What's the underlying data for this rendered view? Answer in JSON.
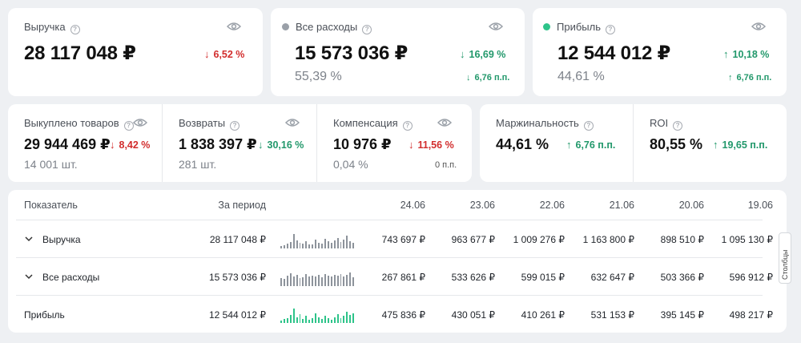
{
  "cards_top": [
    {
      "label": "Выручка",
      "value": "28 117 048 ₽",
      "change": "6,52 %",
      "change_dir": "down",
      "change_color": "red"
    },
    {
      "label": "Все расходы",
      "dot_color": "#9aa0a8",
      "value": "15 573 036 ₽",
      "change": "16,69 %",
      "change_dir": "down",
      "sub": "55,39 %",
      "sub_change": "6,76 п.п.",
      "sub_change_dir": "down"
    },
    {
      "label": "Прибыль",
      "dot_color": "#2ec48a",
      "value": "12 544 012 ₽",
      "change": "10,18 %",
      "change_dir": "up",
      "sub": "44,61 %",
      "sub_change": "6,76 п.п.",
      "sub_change_dir": "up"
    }
  ],
  "cards_mid": [
    {
      "label": "Выкуплено товаров",
      "value": "29 944 469 ₽",
      "change": "8,42 %",
      "change_dir": "down",
      "sub": "14 001 шт."
    },
    {
      "label": "Возвраты",
      "value": "1 838 397 ₽",
      "change": "30,16 %",
      "change_dir": "down",
      "sub": "281 шт."
    },
    {
      "label": "Компенсация",
      "value": "10 976 ₽",
      "change": "11,56 %",
      "change_dir": "down",
      "sub": "0,04 %",
      "sub_change": "0 п.п."
    },
    {
      "label": "Маржинальность",
      "value": "44,61 %",
      "change": "6,76 п.п.",
      "change_dir": "up"
    },
    {
      "label": "ROI",
      "value": "80,55 %",
      "change": "19,65 п.п.",
      "change_dir": "up"
    }
  ],
  "table": {
    "headers": [
      "Показатель",
      "За период",
      "24.06",
      "23.06",
      "22.06",
      "21.06",
      "20.06",
      "19.06"
    ],
    "rows": [
      {
        "name": "Выручка",
        "total": "28 117 048 ₽",
        "values": [
          "743 697 ₽",
          "963 677 ₽",
          "1 009 276 ₽",
          "1 163 800 ₽",
          "898 510 ₽",
          "1 095 130 ₽"
        ],
        "expandable": true
      },
      {
        "name": "Все расходы",
        "total": "15 573 036 ₽",
        "values": [
          "267 861 ₽",
          "533 626 ₽",
          "599 015 ₽",
          "632 647 ₽",
          "503 366 ₽",
          "596 912 ₽"
        ],
        "expandable": true
      },
      {
        "name": "Прибыль",
        "total": "12 544 012 ₽",
        "values": [
          "475 836 ₽",
          "430 051 ₽",
          "410 261 ₽",
          "531 153 ₽",
          "395 145 ₽",
          "498 217 ₽"
        ],
        "expandable": false
      }
    ],
    "side_tab": "Столбцы"
  },
  "colors": {
    "up": "#22986b",
    "down": "#d22d2d",
    "spark_gray": "#8d939b",
    "spark_green": "#2ec48a"
  },
  "icons": [
    "question-icon",
    "eye-icon",
    "arrow-down-icon",
    "arrow-up-icon",
    "chevron-down-icon",
    "columns-icon"
  ]
}
